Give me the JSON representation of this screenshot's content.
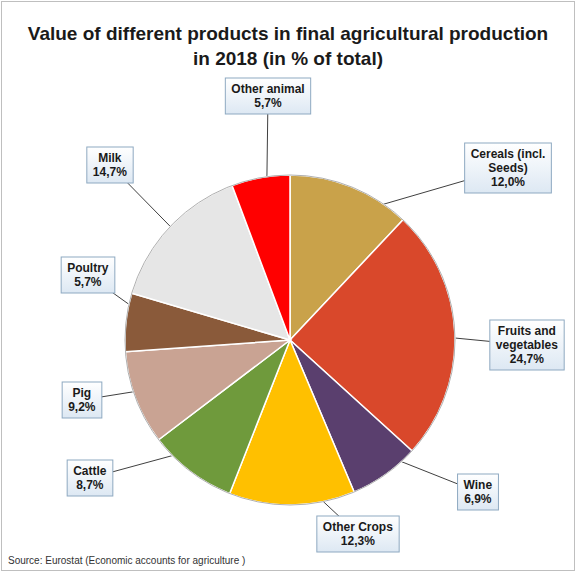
{
  "chart_data": {
    "type": "pie",
    "title": "Value of different products in final agricultural production in 2018 (in % of total)",
    "categories": [
      "Cereals (incl. Seeds)",
      "Fruits and vegetables",
      "Wine",
      "Other Crops",
      "Cattle",
      "Pig",
      "Poultry",
      "Milk",
      "Other animal"
    ],
    "values": [
      12.0,
      24.7,
      6.9,
      12.3,
      8.7,
      9.2,
      5.7,
      14.7,
      5.7
    ],
    "value_labels": [
      "12,0%",
      "24,7%",
      "6,9%",
      "12,3%",
      "8,7%",
      "9,2%",
      "5,7%",
      "14,7%",
      "5,7%"
    ],
    "colors": [
      "#c9a24a",
      "#d9482b",
      "#5a3f6e",
      "#ffc000",
      "#6f9a3c",
      "#c9a393",
      "#8a5a3a",
      "#e6e6e6",
      "#ff0000"
    ],
    "data_labels": true,
    "source": "Source: Eurostat (Economic accounts for agriculture )"
  }
}
